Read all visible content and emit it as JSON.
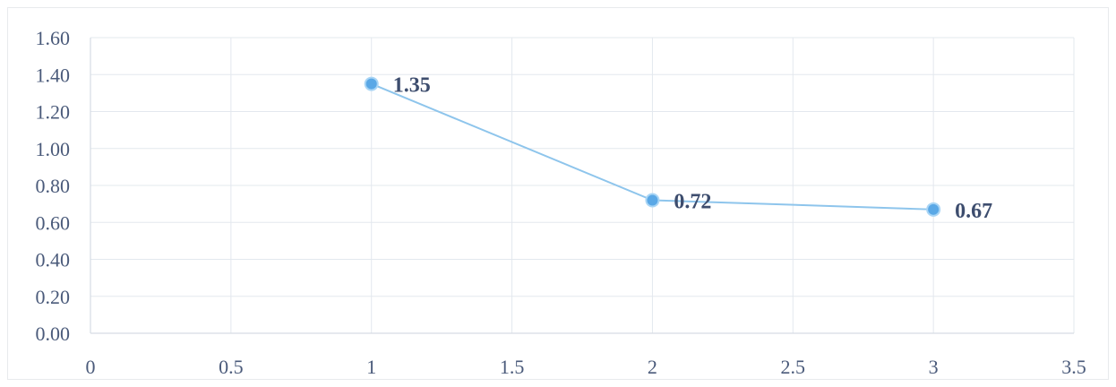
{
  "chart_data": {
    "type": "scatter",
    "title": "",
    "xlabel": "",
    "ylabel": "",
    "xlim": [
      0,
      3.5
    ],
    "ylim": [
      0,
      1.6
    ],
    "x_ticks": [
      "0",
      "0.5",
      "1",
      "1.5",
      "2",
      "2.5",
      "3",
      "3.5"
    ],
    "y_ticks": [
      "0.00",
      "0.20",
      "0.40",
      "0.60",
      "0.80",
      "1.00",
      "1.20",
      "1.40",
      "1.60"
    ],
    "grid": true,
    "legend": "none",
    "series": [
      {
        "x": [
          1,
          2,
          3
        ],
        "y": [
          1.35,
          0.72,
          0.67
        ],
        "labels": [
          "1.35",
          "0.72",
          "0.67"
        ],
        "style": "lines-and-markers"
      }
    ],
    "colors": {
      "series": "#8ec5ec",
      "marker": "#5aa8e6",
      "grid": "#e3e8ee",
      "tick_text": "#4a5a7a"
    }
  }
}
